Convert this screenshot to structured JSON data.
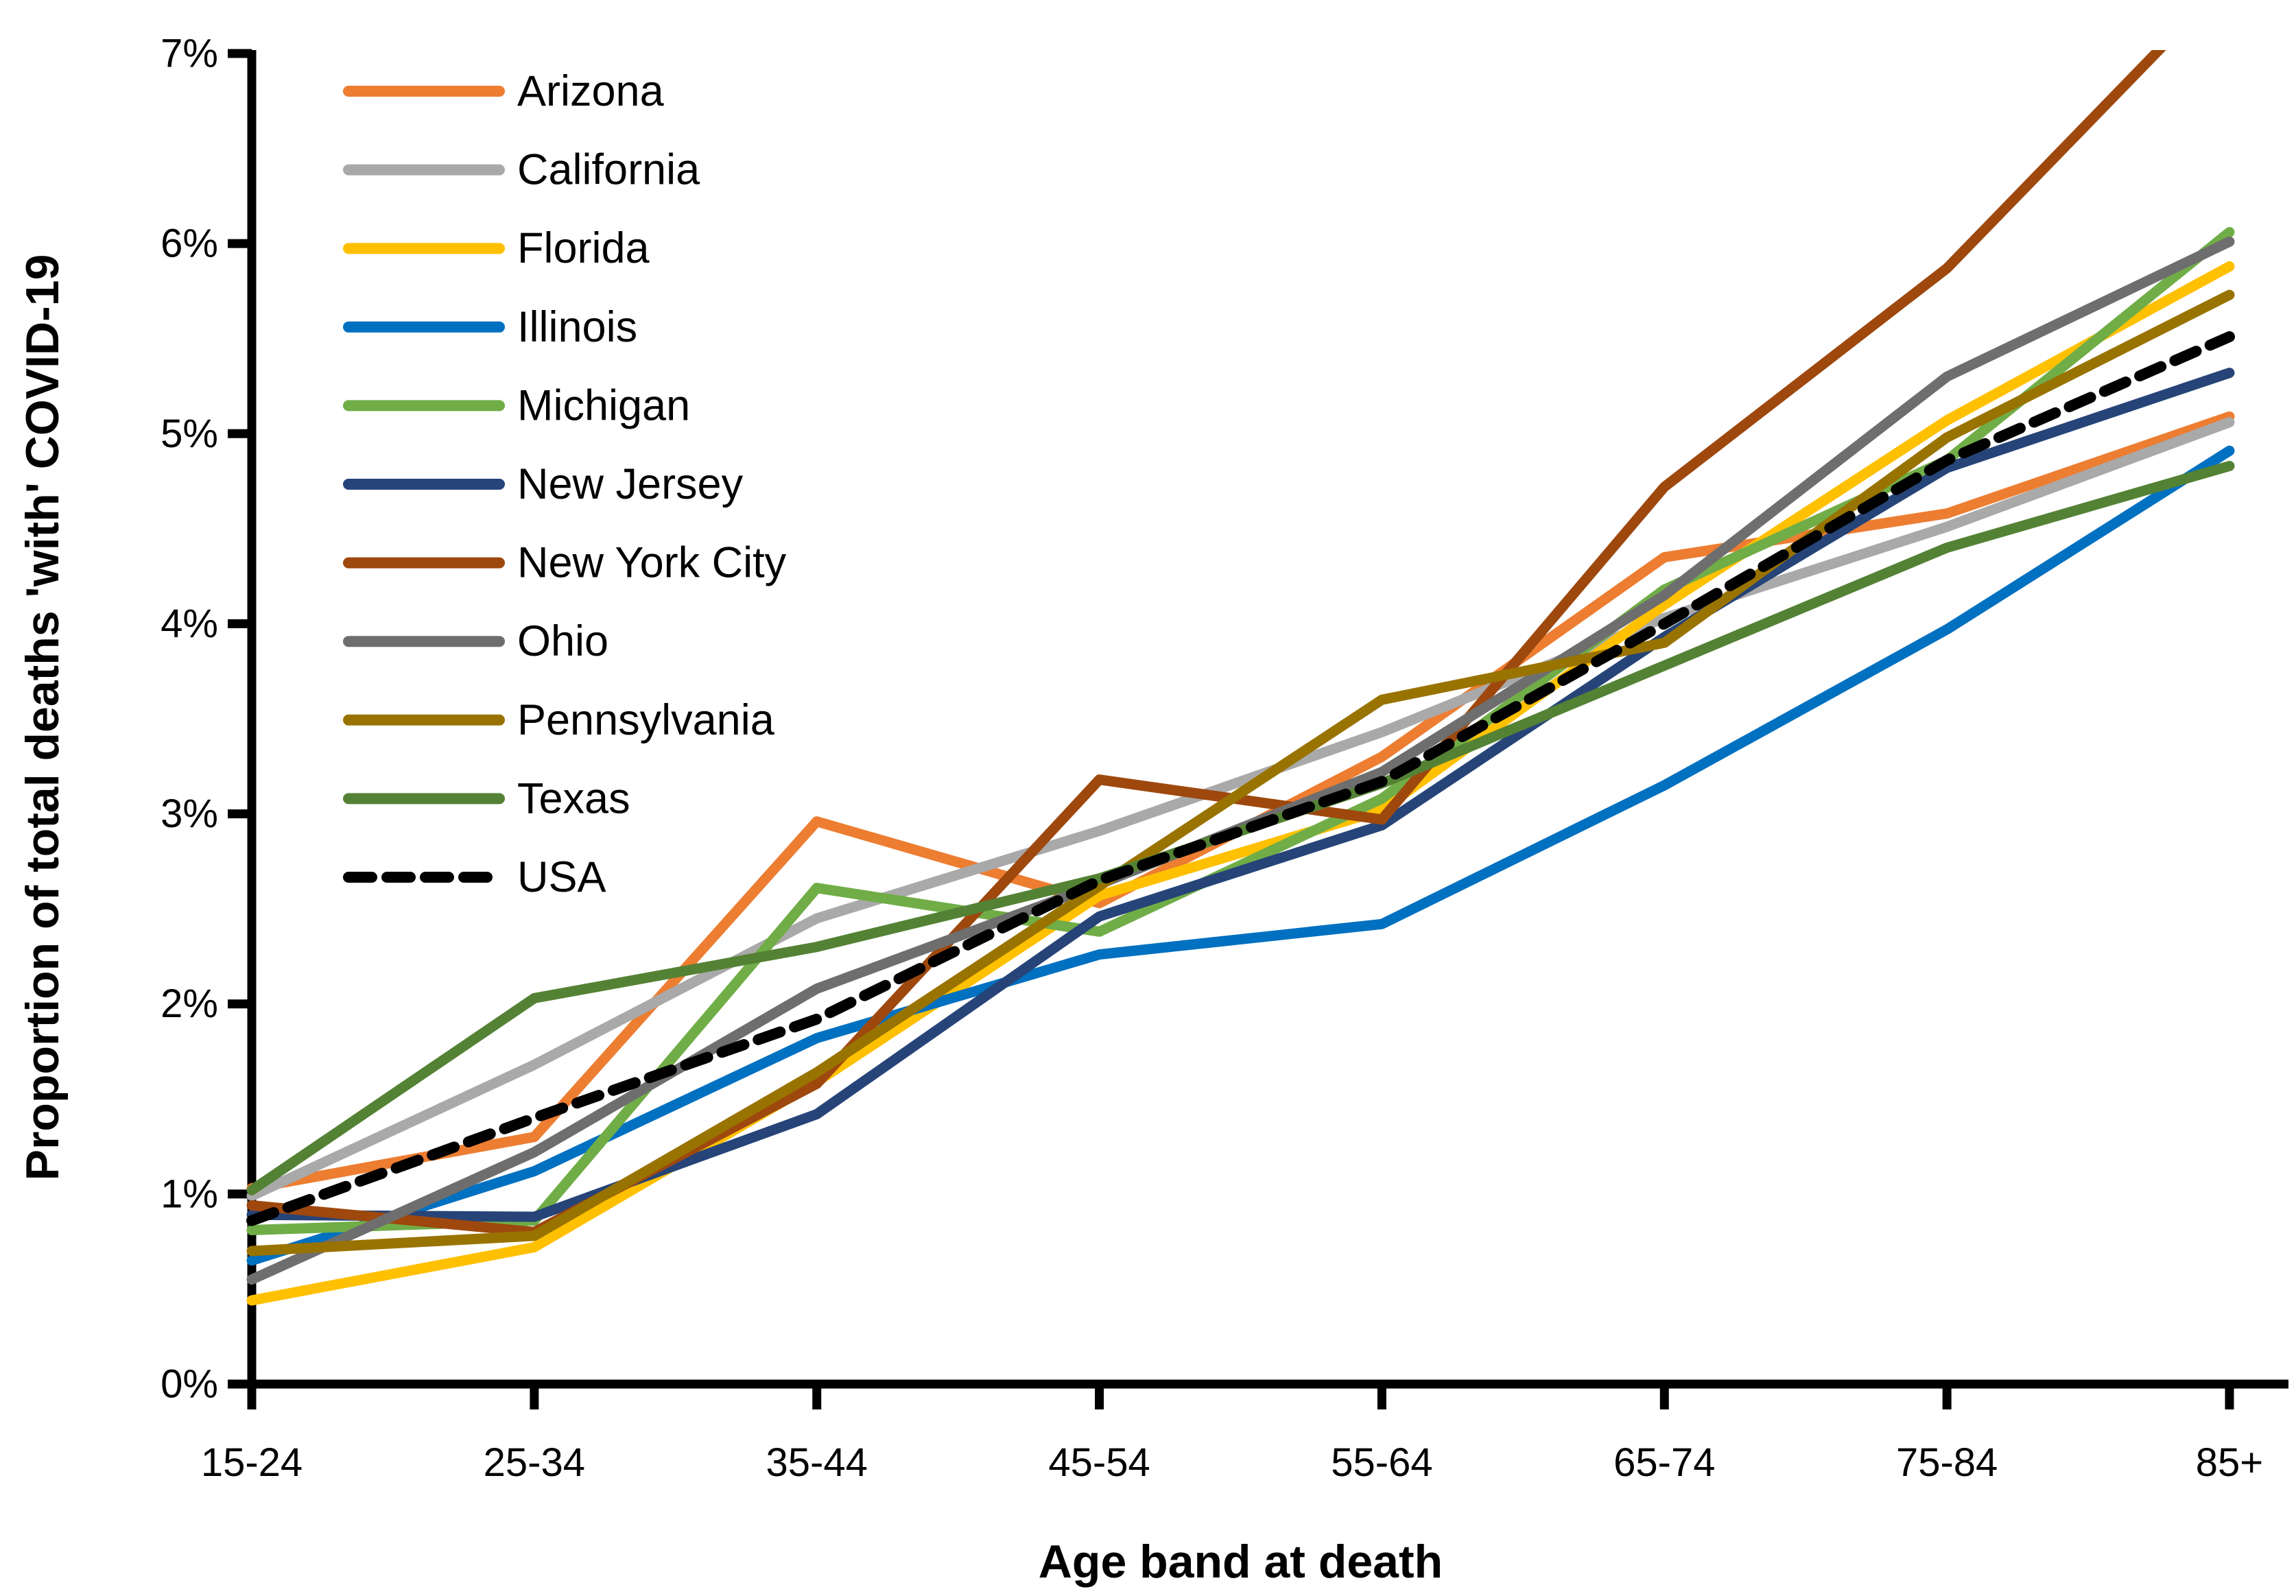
{
  "chart_data": {
    "type": "line",
    "title": "",
    "xlabel": "Age band at death",
    "ylabel": "Proportion of total deaths 'with' COVID-19",
    "categories": [
      "15-24",
      "25-34",
      "35-44",
      "45-54",
      "55-64",
      "65-74",
      "75-84",
      "85+"
    ],
    "y_tick_labels": [
      "0%",
      "1%",
      "2%",
      "3%",
      "4%",
      "5%",
      "6%",
      "7%"
    ],
    "ylim": [
      0,
      7
    ],
    "grid": false,
    "legend_position": "upper-left-inside",
    "series": [
      {
        "name": "Arizona",
        "color": "#ED7D31",
        "dashed": false,
        "values": [
          1.03,
          1.3,
          2.96,
          2.53,
          3.3,
          4.35,
          4.58,
          5.09
        ]
      },
      {
        "name": "California",
        "color": "#A9A9A9",
        "dashed": false,
        "values": [
          0.99,
          1.68,
          2.45,
          2.91,
          3.43,
          4.03,
          4.51,
          5.06
        ]
      },
      {
        "name": "Florida",
        "color": "#FFC000",
        "dashed": false,
        "values": [
          0.44,
          0.72,
          1.59,
          2.57,
          3.02,
          4.1,
          5.07,
          5.88
        ]
      },
      {
        "name": "Illinois",
        "color": "#0070C0",
        "dashed": false,
        "values": [
          0.65,
          1.12,
          1.82,
          2.26,
          2.42,
          3.15,
          3.97,
          4.91
        ]
      },
      {
        "name": "Michigan",
        "color": "#70AD47",
        "dashed": false,
        "values": [
          0.81,
          0.86,
          2.61,
          2.38,
          3.08,
          4.18,
          4.86,
          6.06
        ]
      },
      {
        "name": "New Jersey",
        "color": "#264478",
        "dashed": false,
        "values": [
          0.89,
          0.88,
          1.42,
          2.46,
          2.94,
          3.93,
          4.82,
          5.32
        ]
      },
      {
        "name": "New York City",
        "color": "#9E480E",
        "dashed": false,
        "values": [
          0.94,
          0.8,
          1.58,
          3.18,
          2.97,
          4.72,
          5.87,
          7.4
        ],
        "clipped_at_ymax": true
      },
      {
        "name": "Ohio",
        "color": "#6E6E6E",
        "dashed": false,
        "values": [
          0.55,
          1.22,
          2.08,
          2.63,
          3.22,
          4.15,
          5.3,
          6.01
        ]
      },
      {
        "name": "Pennsylvania",
        "color": "#997300",
        "dashed": false,
        "values": [
          0.7,
          0.78,
          1.64,
          2.62,
          3.6,
          3.9,
          4.98,
          5.73
        ]
      },
      {
        "name": "Texas",
        "color": "#548235",
        "dashed": false,
        "values": [
          1.02,
          2.03,
          2.3,
          2.66,
          3.16,
          3.78,
          4.4,
          4.83
        ]
      },
      {
        "name": "USA",
        "color": "#000000",
        "dashed": true,
        "values": [
          0.86,
          1.4,
          1.92,
          2.65,
          3.17,
          4.0,
          4.86,
          5.51
        ]
      }
    ]
  }
}
